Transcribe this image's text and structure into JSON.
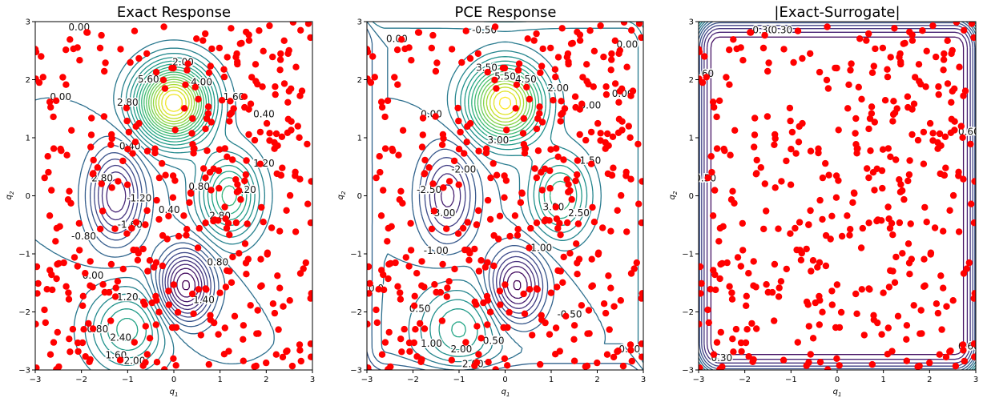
{
  "chart_data": [
    {
      "type": "contour",
      "title": "Exact Response",
      "xlabel": "q1",
      "ylabel": "q2",
      "xlim": [
        -3,
        3
      ],
      "ylim": [
        -3,
        3
      ],
      "xticks": [
        "−3",
        "−2",
        "−1",
        "0",
        "1",
        "2",
        "3"
      ],
      "yticks": [
        "−3",
        "−2",
        "−1",
        "0",
        "1",
        "2",
        "3"
      ],
      "field": "exact",
      "contour_labels": [
        {
          "text": "0.00",
          "x": -2.05,
          "y": 2.9
        },
        {
          "text": "2.00",
          "x": 0.2,
          "y": 2.3
        },
        {
          "text": "5.60",
          "x": -0.55,
          "y": 2.0
        },
        {
          "text": "4.00",
          "x": 0.6,
          "y": 1.95
        },
        {
          "text": "0.00",
          "x": -2.45,
          "y": 1.7
        },
        {
          "text": "2.80",
          "x": -1.0,
          "y": 1.6
        },
        {
          "text": "1.60",
          "x": 1.3,
          "y": 1.7
        },
        {
          "text": "0.40",
          "x": 1.95,
          "y": 1.4
        },
        {
          "text": "0.40",
          "x": -0.95,
          "y": 0.85
        },
        {
          "text": "2.80",
          "x": -1.55,
          "y": 0.3
        },
        {
          "text": "1.20",
          "x": 1.95,
          "y": 0.55
        },
        {
          "text": "3.20",
          "x": 1.55,
          "y": 0.1
        },
        {
          "text": "-1.20",
          "x": -0.75,
          "y": -0.05
        },
        {
          "text": "0.80",
          "x": 0.55,
          "y": 0.15
        },
        {
          "text": "0.40",
          "x": -0.1,
          "y": -0.25
        },
        {
          "text": "-1.60",
          "x": -0.95,
          "y": -0.5
        },
        {
          "text": "2.80",
          "x": 1.0,
          "y": -0.35
        },
        {
          "text": "-0.80",
          "x": -1.95,
          "y": -0.7
        },
        {
          "text": "0.80",
          "x": 0.95,
          "y": -1.15
        },
        {
          "text": "0.00",
          "x": -1.75,
          "y": -1.38
        },
        {
          "text": "1.20",
          "x": -1.0,
          "y": -1.75
        },
        {
          "text": "1.40",
          "x": 0.65,
          "y": -1.8
        },
        {
          "text": "0.80",
          "x": -1.65,
          "y": -2.3
        },
        {
          "text": "2.40",
          "x": -1.15,
          "y": -2.45
        },
        {
          "text": "1.60",
          "x": -1.25,
          "y": -2.75
        },
        {
          "text": "2.00",
          "x": -0.85,
          "y": -2.85
        }
      ]
    },
    {
      "type": "contour",
      "title": "PCE Response",
      "xlabel": "q1",
      "ylabel": "q2",
      "xlim": [
        -3,
        3
      ],
      "ylim": [
        -3,
        3
      ],
      "xticks": [
        "−3",
        "−2",
        "−1",
        "0",
        "1",
        "2",
        "3"
      ],
      "yticks": [
        "−3",
        "−2",
        "−1",
        "0",
        "1",
        "2",
        "3"
      ],
      "field": "pce",
      "contour_labels": [
        {
          "text": "-0.50",
          "x": -0.45,
          "y": 2.85
        },
        {
          "text": "0.00",
          "x": -2.35,
          "y": 2.7
        },
        {
          "text": "0.00",
          "x": 2.65,
          "y": 2.6
        },
        {
          "text": "3.50",
          "x": -0.4,
          "y": 2.2
        },
        {
          "text": "5.50",
          "x": 0.0,
          "y": 2.05
        },
        {
          "text": "4.50",
          "x": 0.45,
          "y": 2.0
        },
        {
          "text": "2.00",
          "x": 1.15,
          "y": 1.85
        },
        {
          "text": "0.00",
          "x": 2.55,
          "y": 1.75
        },
        {
          "text": "0.00",
          "x": 1.85,
          "y": 1.55
        },
        {
          "text": "0.00",
          "x": -1.6,
          "y": 1.4
        },
        {
          "text": "3.00",
          "x": -0.15,
          "y": 0.95
        },
        {
          "text": "-2.00",
          "x": -0.9,
          "y": 0.45
        },
        {
          "text": "1.50",
          "x": 1.85,
          "y": 0.6
        },
        {
          "text": "-2.50",
          "x": -1.65,
          "y": 0.1
        },
        {
          "text": "-3.00",
          "x": -1.35,
          "y": -0.3
        },
        {
          "text": "3.00",
          "x": 1.05,
          "y": -0.2
        },
        {
          "text": "2.50",
          "x": 1.6,
          "y": -0.3
        },
        {
          "text": "-1.00",
          "x": -1.5,
          "y": -0.95
        },
        {
          "text": "-1.00",
          "x": 0.75,
          "y": -0.9
        },
        {
          "text": "0.50",
          "x": -1.85,
          "y": -1.95
        },
        {
          "text": "-0.50",
          "x": 1.4,
          "y": -2.05
        },
        {
          "text": "1.00",
          "x": -1.6,
          "y": -2.55
        },
        {
          "text": "2.00",
          "x": -0.95,
          "y": -2.65
        },
        {
          "text": "2.00",
          "x": -0.7,
          "y": -2.9
        },
        {
          "text": "0.50",
          "x": -0.25,
          "y": -2.5
        },
        {
          "text": "0.0",
          "x": -2.8,
          "y": -1.6
        },
        {
          "text": "0.50",
          "x": 2.7,
          "y": -2.65
        }
      ]
    },
    {
      "type": "contour",
      "title": "|Exact-Surrogate|",
      "xlabel": "q1",
      "ylabel": "q2",
      "xlim": [
        -3,
        3
      ],
      "ylim": [
        -3,
        3
      ],
      "xticks": [
        "−3",
        "−2",
        "−1",
        "0",
        "1",
        "2",
        "3"
      ],
      "yticks": [
        "−3",
        "−2",
        "−1",
        "0",
        "1",
        "2",
        "3"
      ],
      "field": "diff",
      "contour_labels": [
        {
          "text": "0.30",
          "x": -1.6,
          "y": 2.85
        },
        {
          "text": "0.30",
          "x": -1.2,
          "y": 2.85
        },
        {
          "text": "0.60",
          "x": -2.9,
          "y": 2.1
        },
        {
          "text": "0.50",
          "x": -2.85,
          "y": 0.3
        },
        {
          "text": "0.60",
          "x": 2.85,
          "y": 1.1
        },
        {
          "text": "0.30",
          "x": -2.5,
          "y": -2.8
        },
        {
          "text": "0.60",
          "x": 2.85,
          "y": -2.6
        }
      ]
    }
  ],
  "samples": {
    "color": "#ff0000",
    "count": 400,
    "description_seed": 7
  },
  "colormap": "viridis"
}
